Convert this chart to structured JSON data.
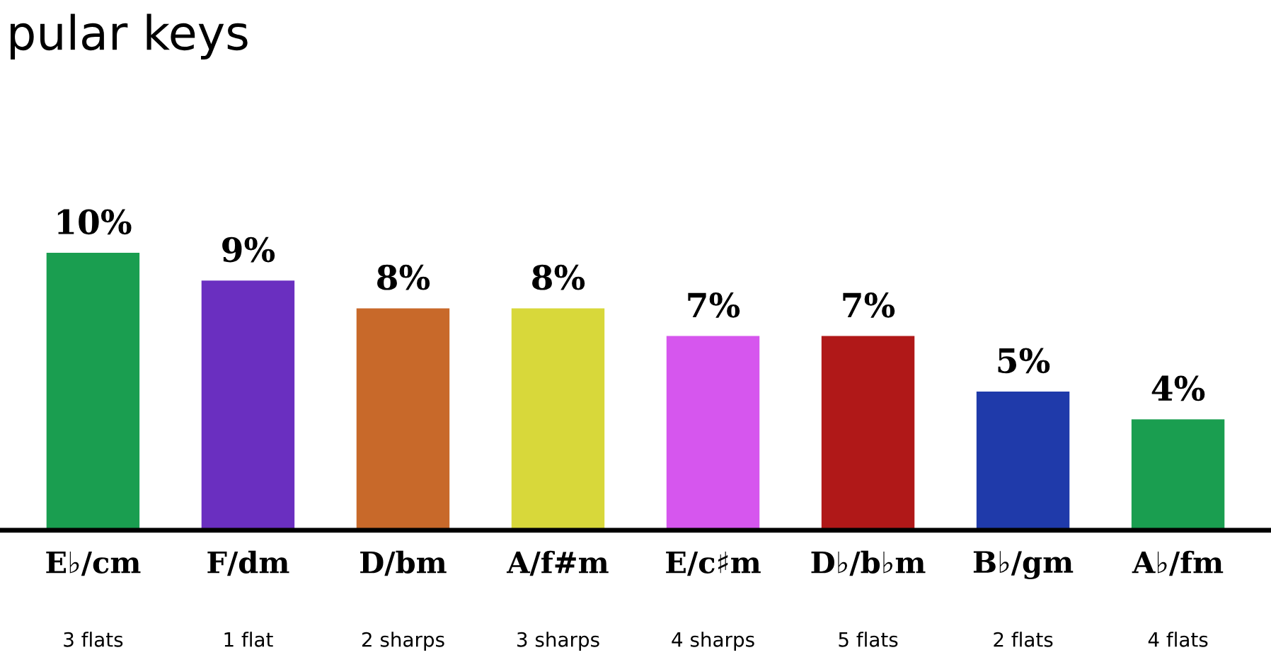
{
  "chart_data": {
    "type": "bar",
    "title": "pular keys",
    "categories": [
      "E♭/cm\n3 flats",
      "F/dm\n1 flat",
      "D/bm\n2 sharps",
      "A/f#m\n3 sharps",
      "E/c♯m\n4 sharps",
      "D♭/b♭m\n5 flats",
      "B♭/gm\n2 flats",
      "A♭/fm\n4 flats"
    ],
    "values": [
      10,
      9,
      8,
      8,
      7,
      7,
      5,
      4
    ],
    "value_labels": [
      "10%",
      "9%",
      "8%",
      "8%",
      "7%",
      "7%",
      "5%",
      "4%"
    ],
    "colors": [
      "#1a9e50",
      "#6a2fc0",
      "#c8692a",
      "#d8d83a",
      "#d656ee",
      "#b01818",
      "#1f3aaa",
      "#1a9e50"
    ]
  }
}
